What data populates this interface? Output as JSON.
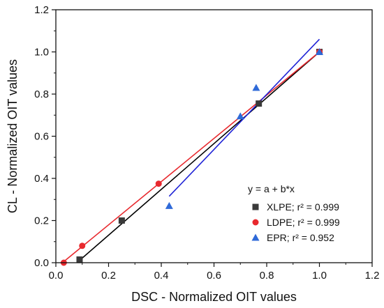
{
  "chart_data": {
    "type": "scatter",
    "xlabel": "DSC - Normalized OIT values",
    "ylabel": "CL - Normalized OIT values",
    "xlim": [
      0.0,
      1.2
    ],
    "ylim": [
      0.0,
      1.2
    ],
    "xticks": [
      "0.0",
      "0.2",
      "0.4",
      "0.6",
      "0.8",
      "1.0",
      "1.2"
    ],
    "yticks": [
      "0.0",
      "0.2",
      "0.4",
      "0.6",
      "0.8",
      "1.0",
      "1.2"
    ],
    "grid": false,
    "legend_position": "lower-right",
    "annotation": "y = a + b*x",
    "series": [
      {
        "name": "XLPE; r² = 0.999",
        "marker": "square",
        "color": "#3a3a3a",
        "fit_color": "#000000",
        "points": [
          [
            0.09,
            0.015
          ],
          [
            0.25,
            0.2
          ],
          [
            0.77,
            0.755
          ],
          [
            1.0,
            1.0
          ]
        ],
        "fit": [
          [
            0.08,
            0.0
          ],
          [
            1.0,
            1.0
          ]
        ]
      },
      {
        "name": "LDPE; r² = 0.999",
        "marker": "circle",
        "color": "#e8292e",
        "fit_color": "#e8292e",
        "points": [
          [
            0.03,
            0.0
          ],
          [
            0.1,
            0.08
          ],
          [
            0.39,
            0.375
          ],
          [
            1.0,
            1.0
          ]
        ],
        "fit": [
          [
            0.025,
            0.0
          ],
          [
            1.0,
            1.0
          ]
        ]
      },
      {
        "name": "EPR; r² = 0.952",
        "marker": "triangle",
        "color": "#2f6ad8",
        "fit_color": "#1f23d6",
        "points": [
          [
            0.43,
            0.27
          ],
          [
            0.7,
            0.695
          ],
          [
            0.76,
            0.83
          ],
          [
            1.0,
            1.0
          ]
        ],
        "fit": [
          [
            0.43,
            0.315
          ],
          [
            1.0,
            1.06
          ]
        ]
      }
    ]
  }
}
